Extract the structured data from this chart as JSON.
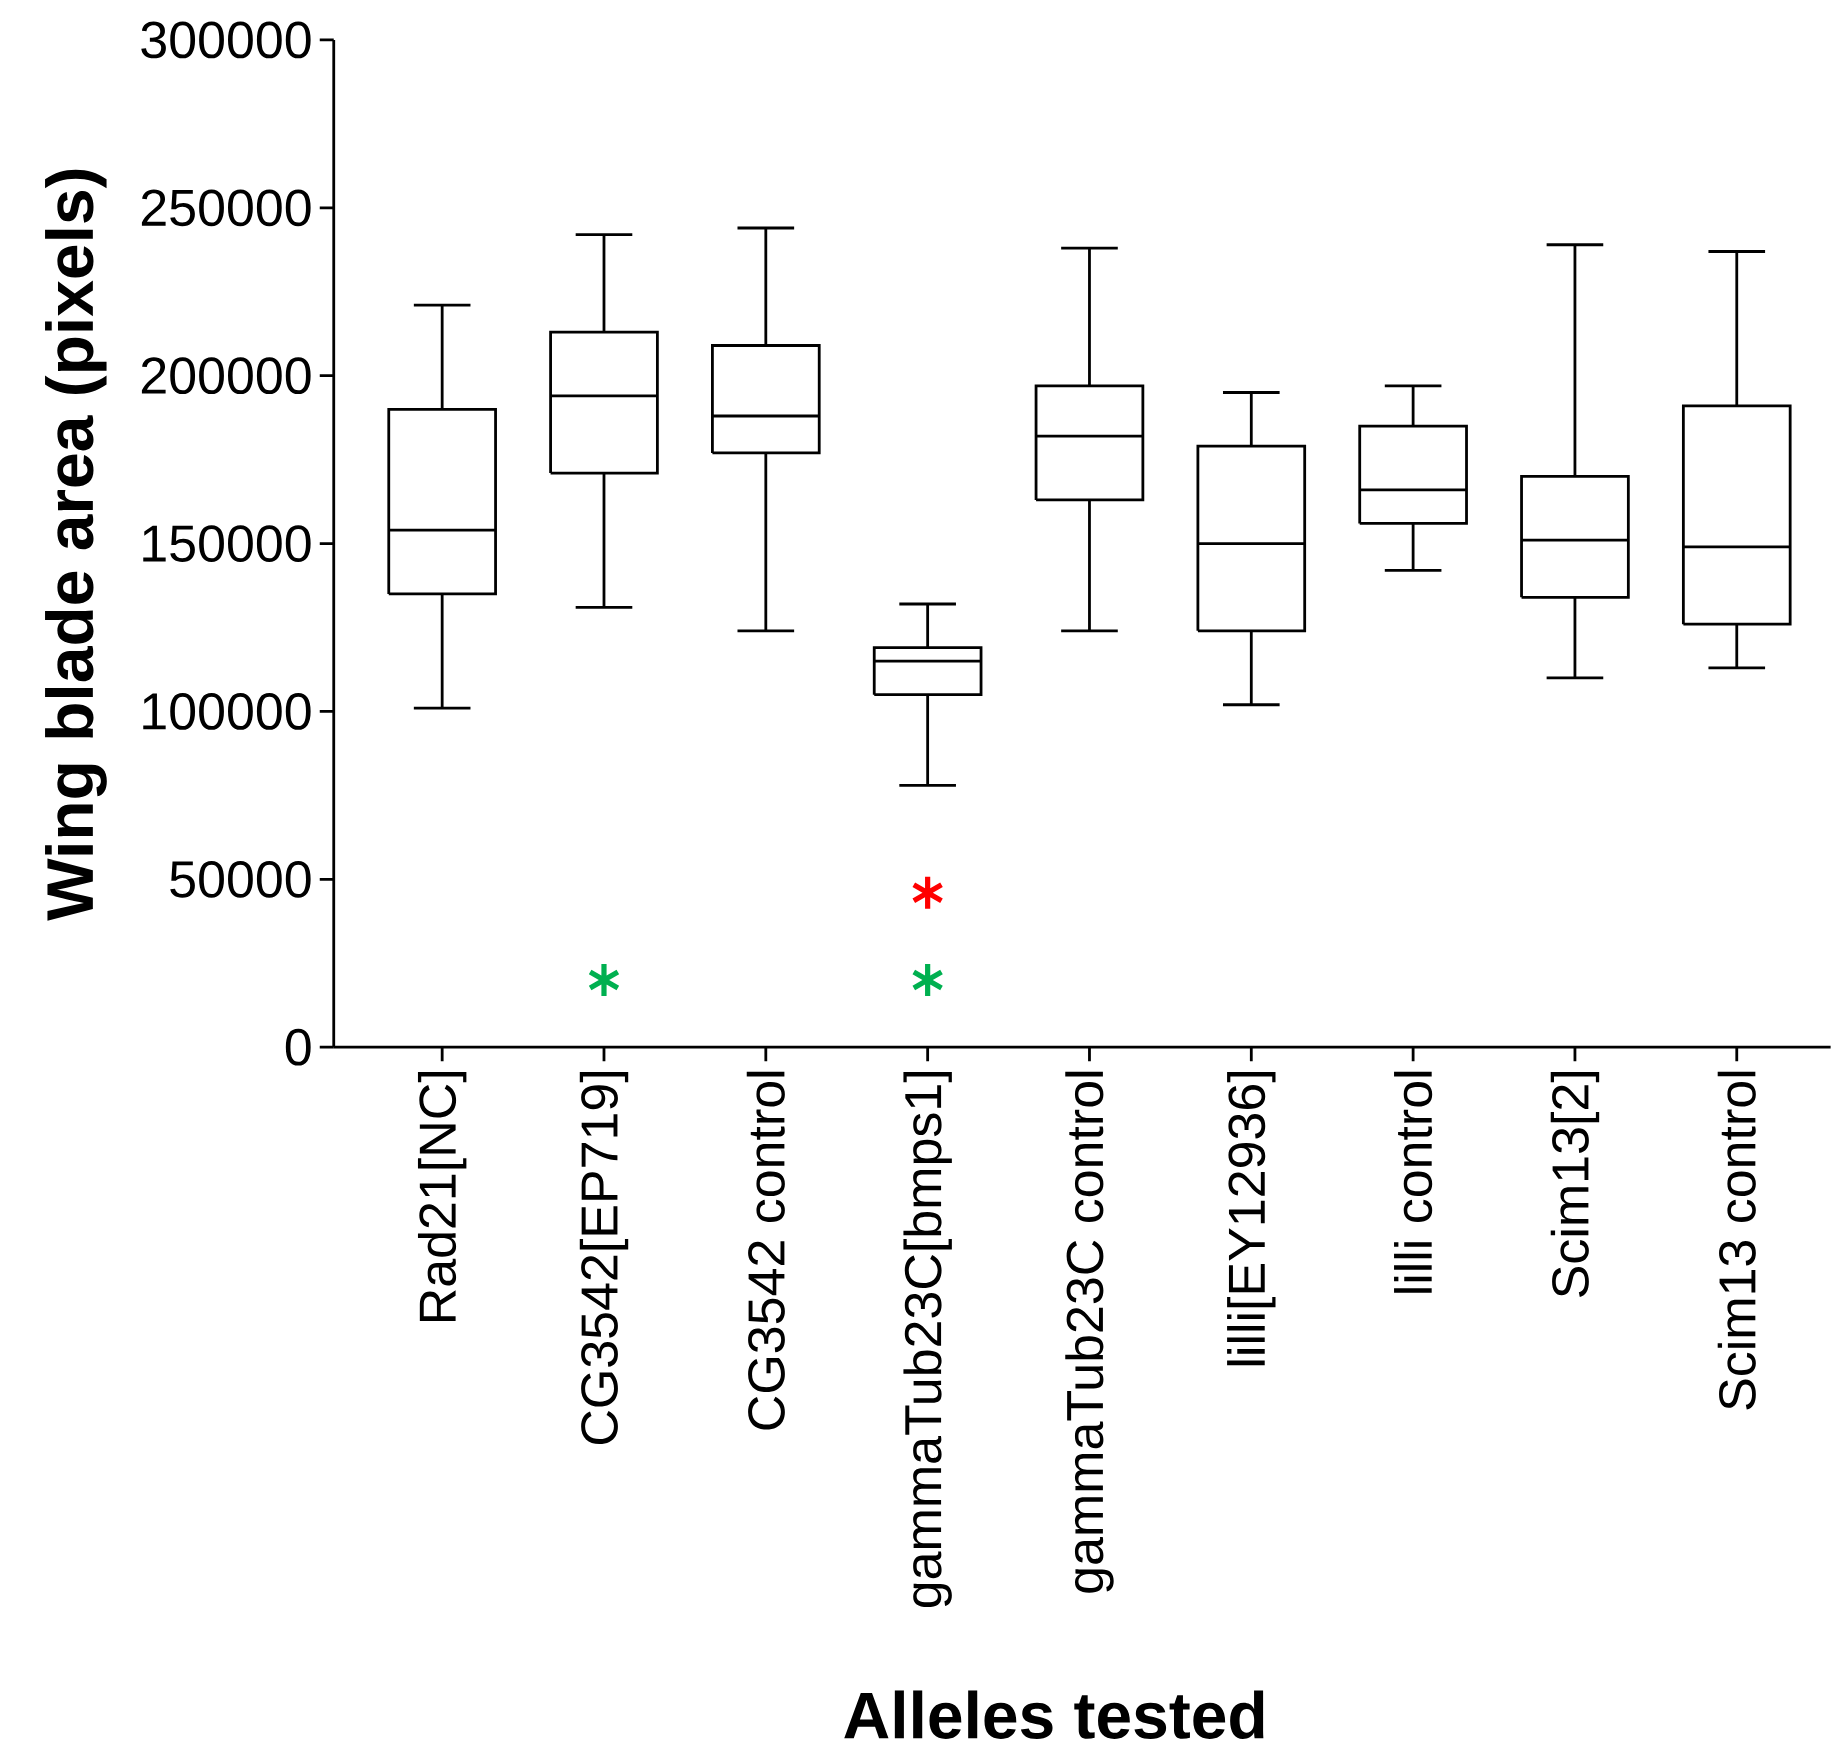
{
  "chart_data": {
    "type": "box",
    "xlabel": "Alleles tested",
    "ylabel": "Wing blade area (pixels)",
    "categories": [
      "Rad21[NC]",
      "CG3542[EP719]",
      "CG3542 control",
      "gammaTub23C[bmps1]",
      "gammaTub23C control",
      "lilli[EY12936]",
      "lilli control",
      "Scim13[2]",
      "Scim13 control"
    ],
    "boxes": [
      {
        "low": 101000,
        "q1": 135000,
        "median": 154000,
        "q3": 190000,
        "high": 221000
      },
      {
        "low": 131000,
        "q1": 171000,
        "median": 194000,
        "q3": 213000,
        "high": 242000
      },
      {
        "low": 124000,
        "q1": 177000,
        "median": 188000,
        "q3": 209000,
        "high": 244000
      },
      {
        "low": 78000,
        "q1": 105000,
        "median": 115000,
        "q3": 119000,
        "high": 132000
      },
      {
        "low": 124000,
        "q1": 163000,
        "median": 182000,
        "q3": 197000,
        "high": 238000
      },
      {
        "low": 102000,
        "q1": 124000,
        "median": 150000,
        "q3": 179000,
        "high": 195000
      },
      {
        "low": 142000,
        "q1": 156000,
        "median": 166000,
        "q3": 185000,
        "high": 197000
      },
      {
        "low": 110000,
        "q1": 134000,
        "median": 151000,
        "q3": 170000,
        "high": 239000
      },
      {
        "low": 113000,
        "q1": 126000,
        "median": 149000,
        "q3": 191000,
        "high": 237000
      }
    ],
    "color": "#000000",
    "series": [
      {
        "type": "scatter",
        "color": "#00b050",
        "marker": "cross",
        "x": [
          "CG3542[EP719]",
          "gammaTub23C[bmps1]"
        ],
        "values": [
          20000,
          20000
        ]
      },
      {
        "type": "scatter",
        "color": "#ff0000",
        "marker": "cross",
        "x": [
          "gammaTub23C[bmps1]"
        ],
        "values": [
          46000
        ]
      }
    ],
    "ylim": [
      0,
      300000
    ],
    "yticks": [
      0,
      50000,
      100000,
      150000,
      200000,
      250000,
      300000
    ],
    "grid": false
  }
}
